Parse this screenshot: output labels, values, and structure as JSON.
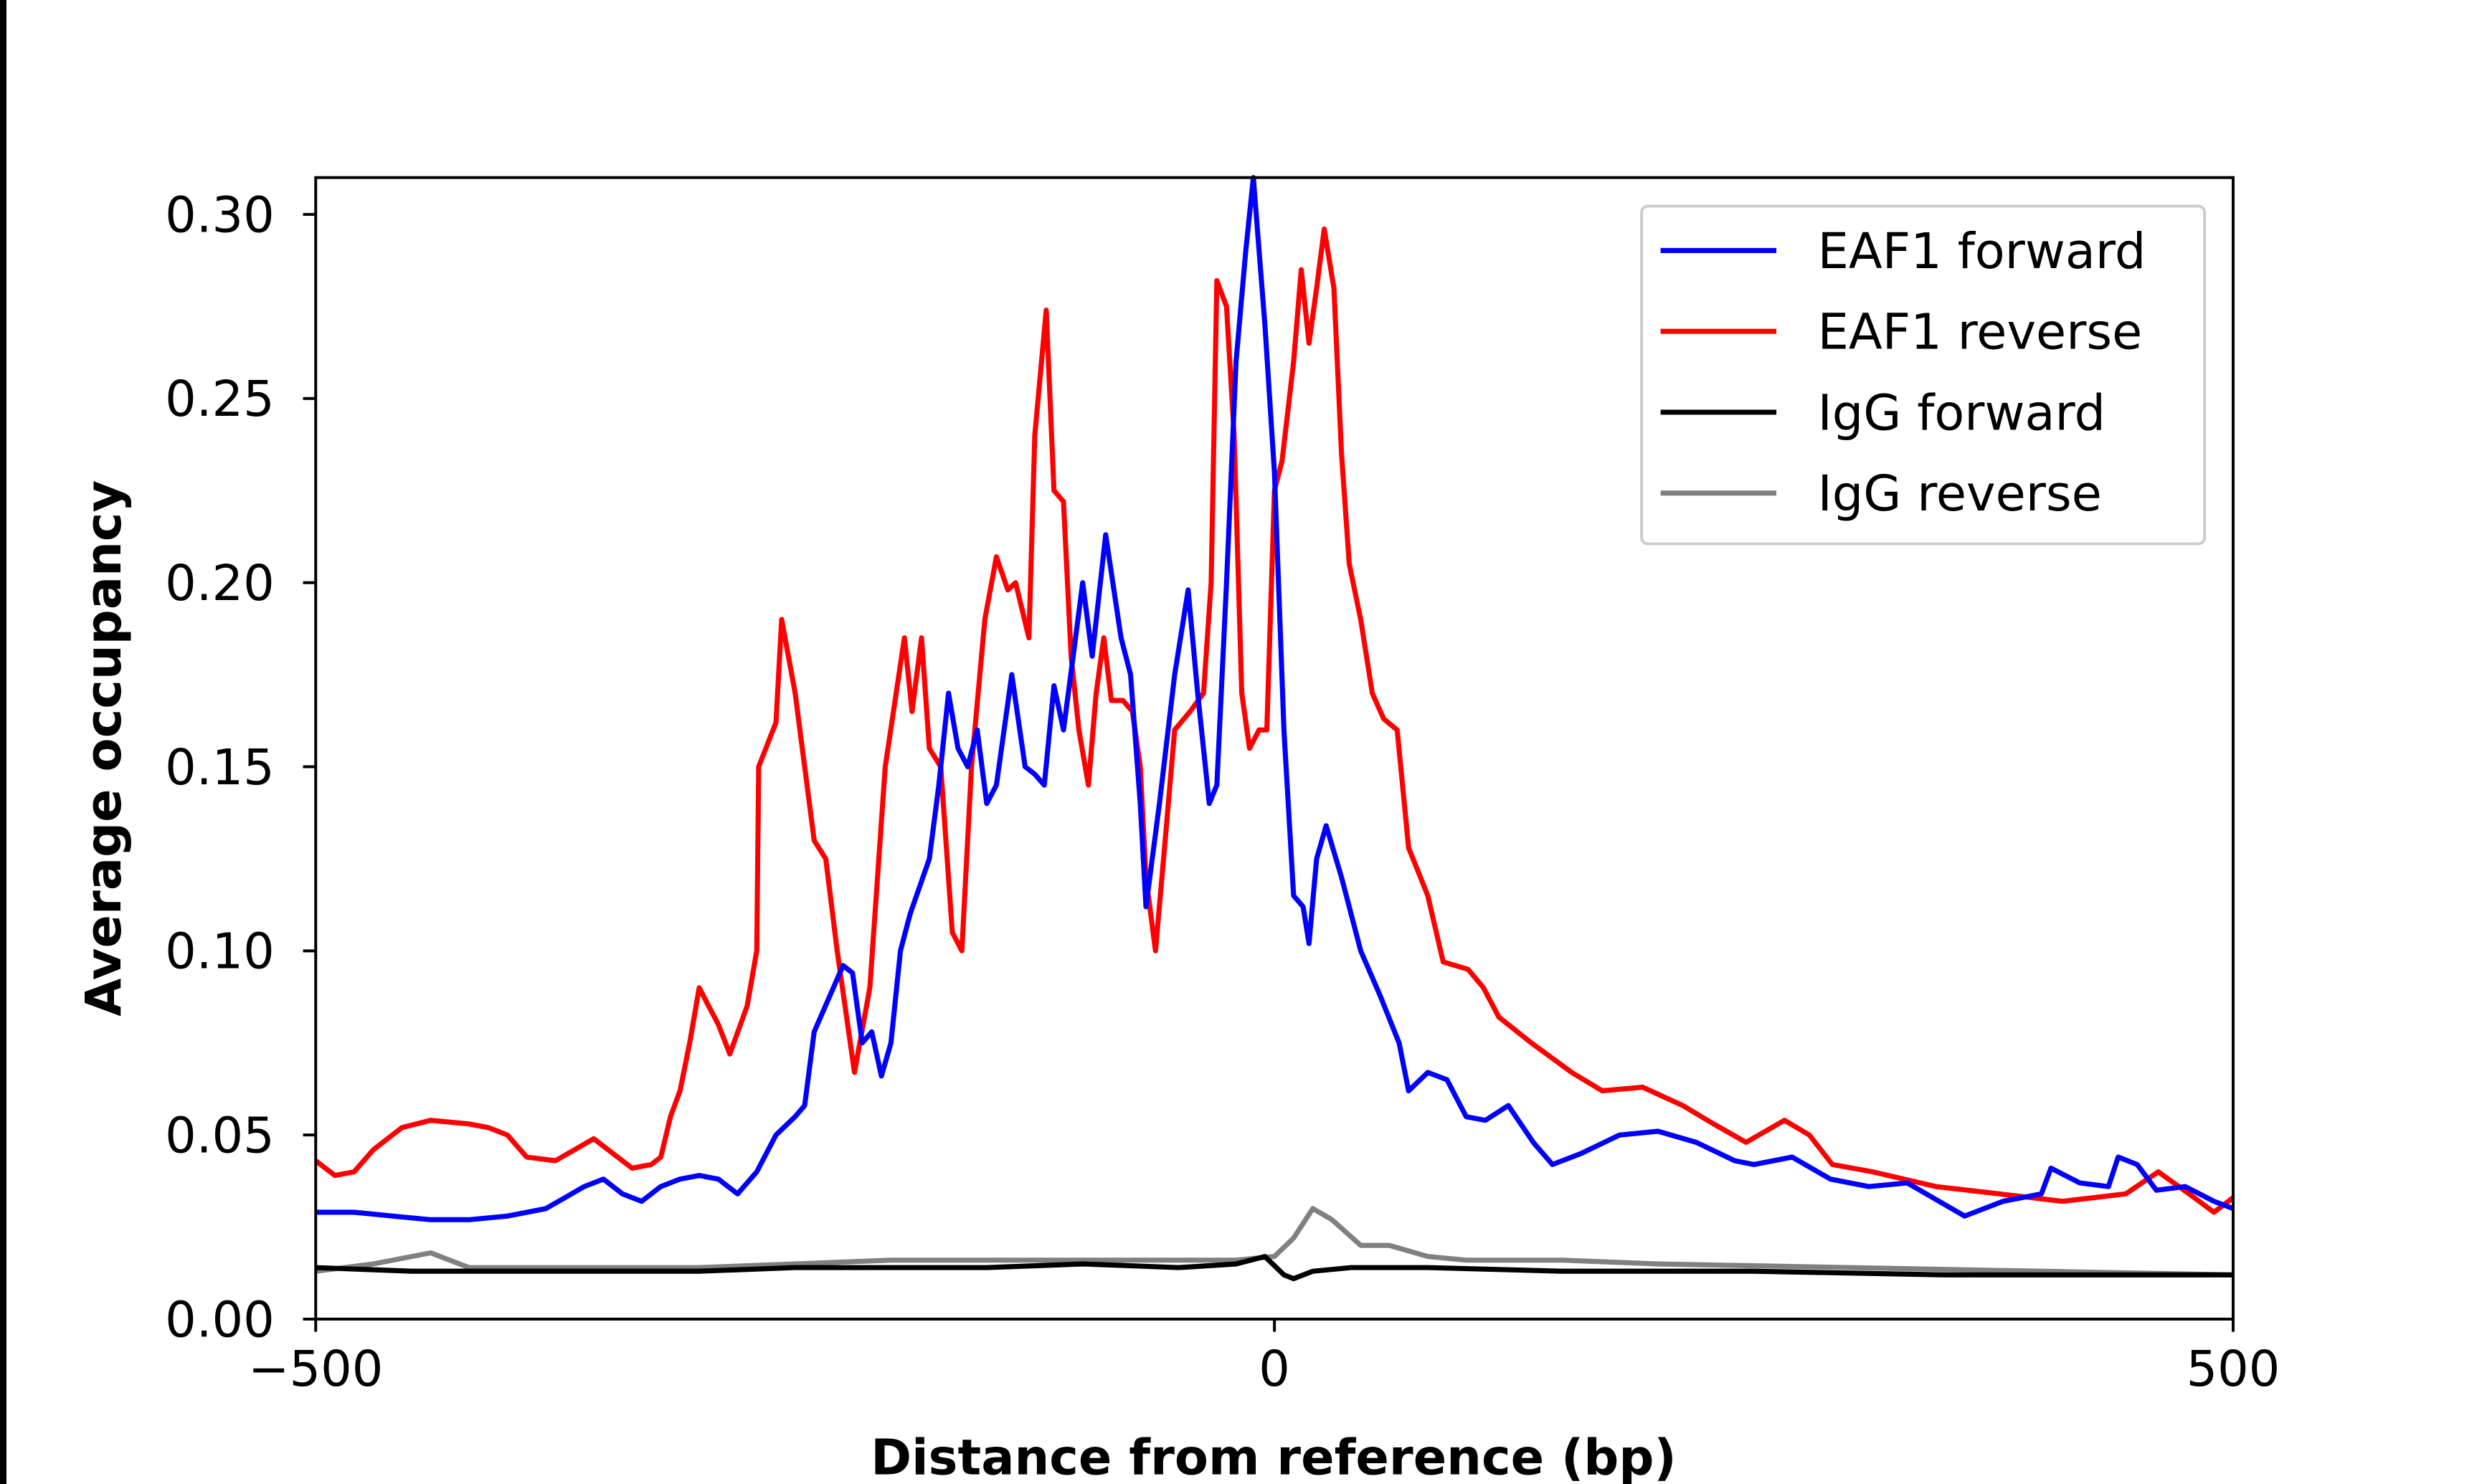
{
  "chart_data": {
    "type": "line",
    "xlabel": "Distance from reference (bp)",
    "ylabel": "Average occupancy",
    "xlim": [
      -500,
      500
    ],
    "ylim": [
      0,
      0.31
    ],
    "xticks": [
      -500,
      0,
      500
    ],
    "xtick_labels": [
      "−500",
      "0",
      "500"
    ],
    "yticks": [
      0,
      0.05,
      0.1,
      0.15,
      0.2,
      0.25,
      0.3
    ],
    "ytick_labels": [
      "0.00",
      "0.05",
      "0.10",
      "0.15",
      "0.20",
      "0.25",
      "0.30"
    ],
    "grid": false,
    "legend_position": "top-right",
    "series": [
      {
        "name": "EAF1 forward",
        "color": "#0000ff",
        "x": [
          -500,
          -480,
          -460,
          -440,
          -420,
          -400,
          -380,
          -370,
          -360,
          -350,
          -340,
          -330,
          -320,
          -310,
          -300,
          -290,
          -280,
          -270,
          -260,
          -250,
          -245,
          -240,
          -230,
          -225,
          -220,
          -215,
          -210,
          -205,
          -200,
          -195,
          -190,
          -180,
          -175,
          -170,
          -165,
          -160,
          -155,
          -150,
          -145,
          -137,
          -130,
          -125,
          -120,
          -115,
          -110,
          -105,
          -100,
          -95,
          -88,
          -80,
          -75,
          -70,
          -67,
          -60,
          -52,
          -45,
          -40,
          -34,
          -30,
          -25,
          -20,
          -15,
          -11,
          -5,
          0,
          5,
          10,
          15,
          18,
          22,
          27,
          35,
          45,
          55,
          65,
          70,
          80,
          90,
          100,
          110,
          122,
          135,
          145,
          160,
          180,
          200,
          220,
          240,
          250,
          270,
          290,
          310,
          330,
          350,
          360,
          380,
          400,
          405,
          420,
          435,
          440,
          450,
          460,
          475,
          490,
          500
        ],
        "y": [
          0.029,
          0.029,
          0.028,
          0.027,
          0.027,
          0.028,
          0.03,
          0.033,
          0.036,
          0.038,
          0.034,
          0.032,
          0.036,
          0.038,
          0.039,
          0.038,
          0.034,
          0.04,
          0.05,
          0.055,
          0.058,
          0.078,
          0.09,
          0.096,
          0.094,
          0.075,
          0.078,
          0.066,
          0.075,
          0.1,
          0.11,
          0.125,
          0.145,
          0.17,
          0.155,
          0.15,
          0.16,
          0.14,
          0.145,
          0.175,
          0.15,
          0.148,
          0.145,
          0.172,
          0.16,
          0.18,
          0.2,
          0.18,
          0.213,
          0.185,
          0.175,
          0.14,
          0.112,
          0.14,
          0.175,
          0.198,
          0.17,
          0.14,
          0.145,
          0.2,
          0.26,
          0.29,
          0.31,
          0.27,
          0.23,
          0.16,
          0.115,
          0.112,
          0.102,
          0.125,
          0.134,
          0.12,
          0.1,
          0.088,
          0.075,
          0.062,
          0.067,
          0.065,
          0.055,
          0.054,
          0.058,
          0.048,
          0.042,
          0.045,
          0.05,
          0.051,
          0.048,
          0.043,
          0.042,
          0.044,
          0.038,
          0.036,
          0.037,
          0.031,
          0.028,
          0.032,
          0.034,
          0.041,
          0.037,
          0.036,
          0.044,
          0.042,
          0.035,
          0.036,
          0.032,
          0.03
        ]
      },
      {
        "name": "EAF1 reverse",
        "color": "#ff0000",
        "x": [
          -500,
          -490,
          -480,
          -470,
          -455,
          -440,
          -420,
          -410,
          -400,
          -390,
          -375,
          -365,
          -355,
          -345,
          -335,
          -325,
          -320,
          -315,
          -310,
          -305,
          -300,
          -295,
          -290,
          -284,
          -275,
          -270,
          -269,
          -260,
          -257,
          -250,
          -245,
          -240,
          -234,
          -228,
          -219,
          -211,
          -203,
          -193,
          -189,
          -184,
          -180,
          -174,
          -168,
          -163,
          -158,
          -151,
          -145,
          -139,
          -135,
          -128,
          -125,
          -119,
          -115,
          -110,
          -106,
          -102,
          -97,
          -93,
          -89,
          -85,
          -79,
          -74,
          -70,
          -67,
          -62,
          -57,
          -52,
          -44,
          -37,
          -33,
          -30,
          -25,
          -21,
          -17,
          -13,
          -8,
          -4,
          0,
          4,
          10,
          14,
          18,
          22,
          26,
          31,
          35,
          39,
          45,
          51,
          57,
          64,
          70,
          80,
          88,
          101,
          109,
          117,
          134,
          155,
          171,
          192,
          213,
          229,
          246,
          266,
          279,
          291,
          312,
          345,
          378,
          411,
          444,
          461,
          477,
          490,
          500
        ],
        "y": [
          0.043,
          0.039,
          0.04,
          0.046,
          0.052,
          0.054,
          0.053,
          0.052,
          0.05,
          0.044,
          0.043,
          0.046,
          0.049,
          0.045,
          0.041,
          0.042,
          0.044,
          0.055,
          0.062,
          0.075,
          0.09,
          0.085,
          0.08,
          0.072,
          0.085,
          0.1,
          0.15,
          0.162,
          0.19,
          0.17,
          0.15,
          0.13,
          0.125,
          0.1,
          0.067,
          0.09,
          0.15,
          0.185,
          0.165,
          0.185,
          0.155,
          0.15,
          0.105,
          0.1,
          0.15,
          0.19,
          0.207,
          0.198,
          0.2,
          0.185,
          0.24,
          0.274,
          0.225,
          0.222,
          0.18,
          0.16,
          0.145,
          0.17,
          0.185,
          0.168,
          0.168,
          0.165,
          0.15,
          0.12,
          0.1,
          0.13,
          0.16,
          0.165,
          0.17,
          0.2,
          0.282,
          0.275,
          0.24,
          0.17,
          0.155,
          0.16,
          0.16,
          0.225,
          0.233,
          0.26,
          0.285,
          0.265,
          0.28,
          0.296,
          0.28,
          0.235,
          0.205,
          0.19,
          0.17,
          0.163,
          0.16,
          0.128,
          0.115,
          0.097,
          0.095,
          0.09,
          0.082,
          0.075,
          0.067,
          0.062,
          0.063,
          0.058,
          0.053,
          0.048,
          0.054,
          0.05,
          0.042,
          0.04,
          0.036,
          0.034,
          0.032,
          0.034,
          0.04,
          0.034,
          0.029,
          0.033
        ]
      },
      {
        "name": "IgG forward",
        "color": "#000000",
        "x": [
          -500,
          -450,
          -400,
          -350,
          -300,
          -250,
          -200,
          -150,
          -100,
          -50,
          -20,
          -5,
          5,
          10,
          20,
          40,
          80,
          150,
          250,
          350,
          450,
          500
        ],
        "y": [
          0.014,
          0.013,
          0.013,
          0.013,
          0.013,
          0.014,
          0.014,
          0.014,
          0.015,
          0.014,
          0.015,
          0.017,
          0.012,
          0.011,
          0.013,
          0.014,
          0.014,
          0.013,
          0.013,
          0.012,
          0.012,
          0.012
        ]
      },
      {
        "name": "IgG reverse",
        "color": "#808080",
        "x": [
          -500,
          -470,
          -440,
          -420,
          -380,
          -300,
          -250,
          -200,
          -150,
          -100,
          -50,
          -20,
          0,
          10,
          20,
          30,
          45,
          60,
          80,
          100,
          150,
          200,
          300,
          400,
          500
        ],
        "y": [
          0.013,
          0.015,
          0.018,
          0.014,
          0.014,
          0.014,
          0.015,
          0.016,
          0.016,
          0.016,
          0.016,
          0.016,
          0.017,
          0.022,
          0.03,
          0.027,
          0.02,
          0.02,
          0.017,
          0.016,
          0.016,
          0.015,
          0.014,
          0.013,
          0.012
        ]
      }
    ]
  }
}
